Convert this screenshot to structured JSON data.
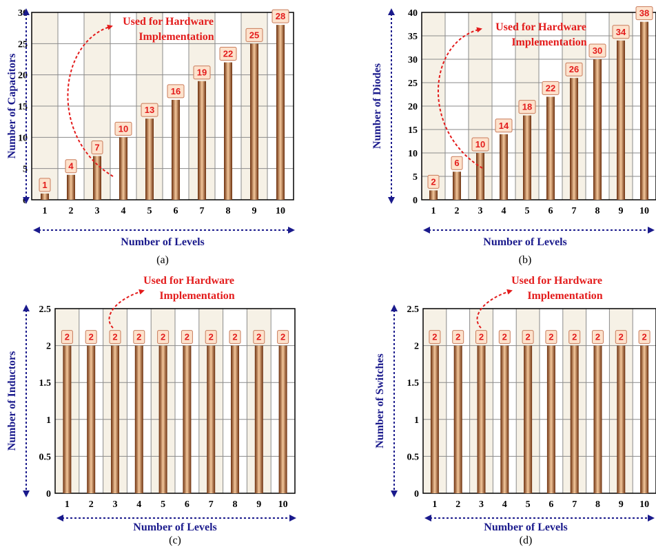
{
  "colors": {
    "bar_dark": "#6b2e0c",
    "bar_light": "#f4c89c",
    "annotation": "#e31b1b",
    "axis_title": "#1a1a8c",
    "label_box_fill": "#fde2cc",
    "label_box_stroke": "#c97b5a",
    "grid": "#8a8a8a",
    "plot_bg_odd": "#f6f1e6"
  },
  "chart_data": [
    {
      "type": "bar",
      "panel_label": "(a)",
      "categories": [
        "1",
        "2",
        "3",
        "4",
        "5",
        "6",
        "7",
        "8",
        "9",
        "10"
      ],
      "values": [
        1,
        4,
        7,
        10,
        13,
        16,
        19,
        22,
        25,
        28
      ],
      "ylim": [
        0,
        30
      ],
      "yticks": [
        "0",
        "5",
        "10",
        "15",
        "20",
        "25",
        "30"
      ],
      "ylabel": "Number of Capacitors",
      "xlabel": "Number of Levels",
      "annotation": [
        "Used for Hardware",
        "Implementation"
      ],
      "annotation_target": "3",
      "grid": true
    },
    {
      "type": "bar",
      "panel_label": "(b)",
      "categories": [
        "1",
        "2",
        "3",
        "4",
        "5",
        "6",
        "7",
        "8",
        "9",
        "10"
      ],
      "values": [
        2,
        6,
        10,
        14,
        18,
        22,
        26,
        30,
        34,
        38
      ],
      "ylim": [
        0,
        40
      ],
      "yticks": [
        "0",
        "5",
        "10",
        "15",
        "20",
        "25",
        "30",
        "35",
        "40"
      ],
      "ylabel": "Number of Diodes",
      "xlabel": "Number of Levels",
      "annotation": [
        "Used for Hardware",
        "Implementation"
      ],
      "annotation_target": "3",
      "grid": true
    },
    {
      "type": "bar",
      "panel_label": "(c)",
      "categories": [
        "1",
        "2",
        "3",
        "4",
        "5",
        "6",
        "7",
        "8",
        "9",
        "10"
      ],
      "values": [
        2,
        2,
        2,
        2,
        2,
        2,
        2,
        2,
        2,
        2
      ],
      "ylim": [
        0,
        2.5
      ],
      "yticks": [
        "0",
        "0.5",
        "1",
        "1.5",
        "2",
        "2.5"
      ],
      "ylabel": "Number of Inductors",
      "xlabel": "Number of Levels",
      "annotation": [
        "Used for Hardware",
        "Implementation"
      ],
      "annotation_target": "3",
      "grid": true
    },
    {
      "type": "bar",
      "panel_label": "(d)",
      "categories": [
        "1",
        "2",
        "3",
        "4",
        "5",
        "6",
        "7",
        "8",
        "9",
        "10"
      ],
      "values": [
        2,
        2,
        2,
        2,
        2,
        2,
        2,
        2,
        2,
        2
      ],
      "ylim": [
        0,
        2.5
      ],
      "yticks": [
        "0",
        "0.5",
        "1",
        "1.5",
        "2",
        "2.5"
      ],
      "ylabel": "Number of Switches",
      "xlabel": "Number of Levels",
      "annotation": [
        "Used for Hardware",
        "Implementation"
      ],
      "annotation_target": "3",
      "grid": true
    }
  ]
}
